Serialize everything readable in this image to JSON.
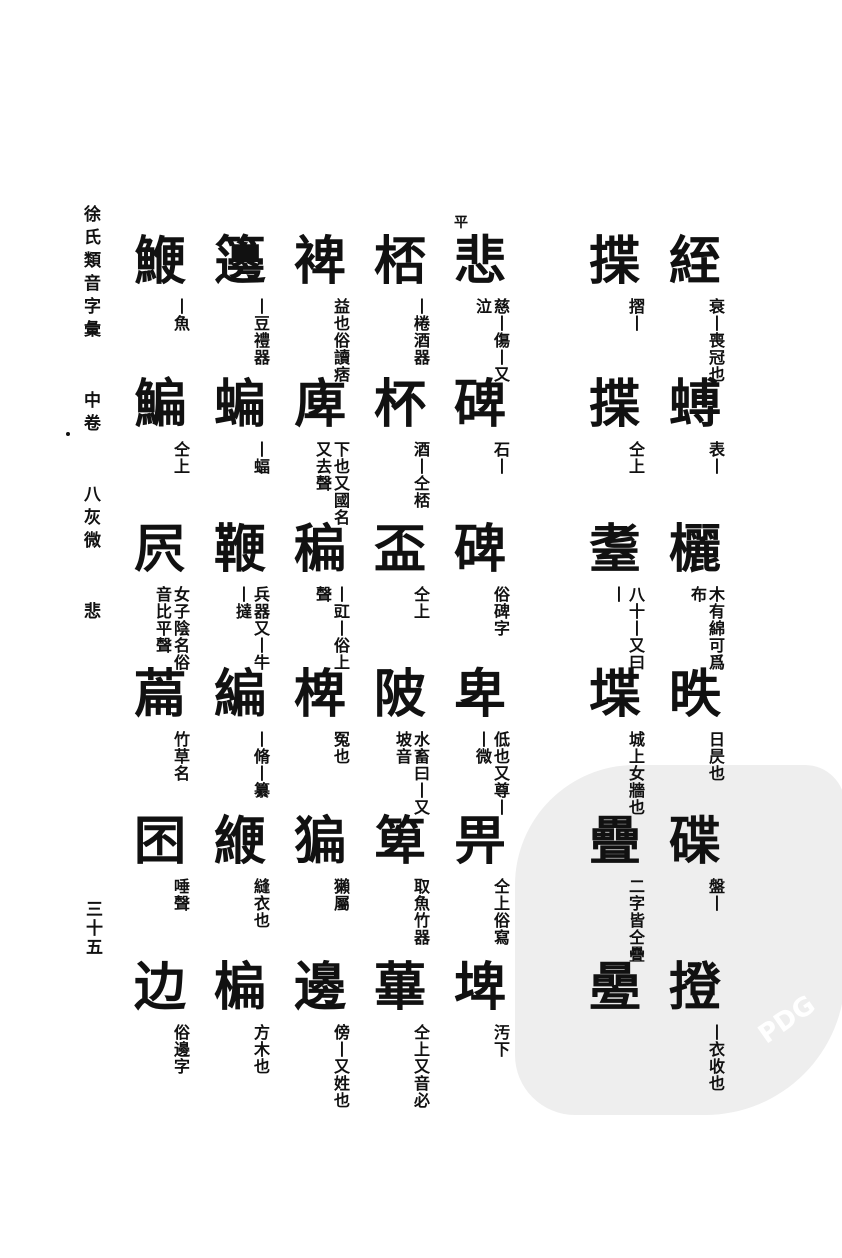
{
  "header": {
    "book_title": "徐氏類音字彙",
    "volume": "中卷",
    "rhyme": "八灰微",
    "section": "悲",
    "page_number": "三十五"
  },
  "tone_marker": "平",
  "watermark": {
    "label": "PDG"
  },
  "left_block": {
    "columns": [
      [
        {
          "char": "悲",
          "note": "慈丨傷丨又泣"
        },
        {
          "char": "碑",
          "note": "石丨"
        },
        {
          "char": "碑",
          "note": "俗碑字"
        },
        {
          "char": "卑",
          "note": "低也又尊丨丨微"
        },
        {
          "char": "畀",
          "note": "仝上俗寫"
        },
        {
          "char": "埤",
          "note": "汚下"
        }
      ],
      [
        {
          "char": "桮",
          "note": "丨棬酒器"
        },
        {
          "char": "杯",
          "note": "酒丨仝桮"
        },
        {
          "char": "盃",
          "note": "仝上"
        },
        {
          "char": "陂",
          "note": "水畜曰丨又坡音"
        },
        {
          "char": "箄",
          "note": "取魚竹器"
        },
        {
          "char": "蓽",
          "note": "仝上又音必"
        }
      ],
      [
        {
          "char": "裨",
          "note": "益也俗讀痞"
        },
        {
          "char": "庳",
          "note": "下也又國名又去聲"
        },
        {
          "char": "稨",
          "note": "丨豇丨俗上聲"
        },
        {
          "char": "椑",
          "note": "冤也"
        },
        {
          "char": "猵",
          "note": "獺屬"
        },
        {
          "char": "邊",
          "note": "傍丨又姓也"
        }
      ],
      [
        {
          "char": "籩",
          "note": "丨豆禮器"
        },
        {
          "char": "蝙",
          "note": "丨蝠"
        },
        {
          "char": "鞭",
          "note": "兵器又丨牛丨撻"
        },
        {
          "char": "編",
          "note": "丨脩丨纂"
        },
        {
          "char": "緶",
          "note": "縫衣也"
        },
        {
          "char": "楄",
          "note": "方木也"
        }
      ],
      [
        {
          "char": "鯾",
          "note": "丨魚"
        },
        {
          "char": "鯿",
          "note": "仝上"
        },
        {
          "char": "屄",
          "note": "女子陰名俗音比平聲"
        },
        {
          "char": "萹",
          "note": "竹草名"
        },
        {
          "char": "囨",
          "note": "唾聲"
        },
        {
          "char": "边",
          "note": "俗邊字"
        }
      ]
    ]
  },
  "right_block": {
    "columns": [
      [
        {
          "char": "絰",
          "note": "衰丨喪冠也"
        },
        {
          "char": "䗚",
          "note": "表丨"
        },
        {
          "char": "欐",
          "note": "木有綿可爲布"
        },
        {
          "char": "昳",
          "note": "日昃也"
        },
        {
          "char": "碟",
          "note": "盤丨"
        },
        {
          "char": "撜",
          "note": "丨衣收也"
        }
      ],
      [
        {
          "char": "揲",
          "note": "摺丨"
        },
        {
          "char": "揲",
          "note": "仝上"
        },
        {
          "char": "耋",
          "note": "八十丨又曰丨"
        },
        {
          "char": "堞",
          "note": "城上女牆也"
        },
        {
          "char": "疊",
          "note": "二字皆仝疊"
        },
        {
          "char": "㬪",
          "note": ""
        }
      ]
    ]
  }
}
